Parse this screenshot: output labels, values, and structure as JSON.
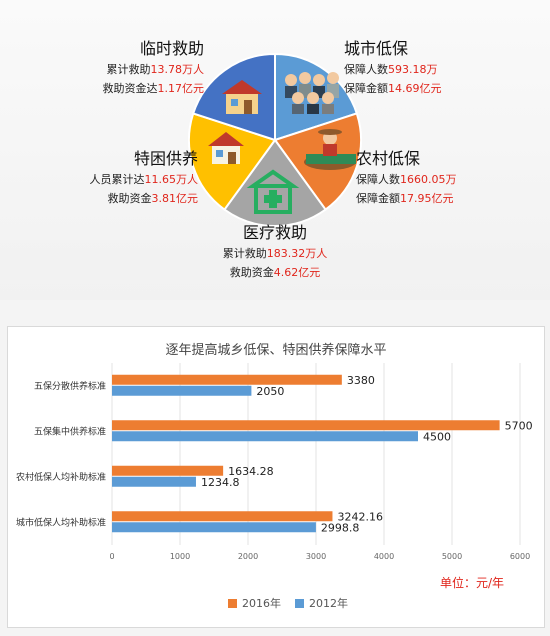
{
  "pie": {
    "slices": [
      {
        "key": "urban",
        "title": "城市低保",
        "color": "#5b9bd5",
        "lines": [
          {
            "prefix": "保障人数",
            "value": "593.18万"
          },
          {
            "prefix": "保障金额",
            "value": "14.69亿元"
          }
        ]
      },
      {
        "key": "rural",
        "title": "农村低保",
        "color": "#ed7d31",
        "lines": [
          {
            "prefix": "保障人数",
            "value": "1660.05万"
          },
          {
            "prefix": "保障金额",
            "value": "17.95亿元"
          }
        ]
      },
      {
        "key": "medical",
        "title": "医疗救助",
        "color": "#a5a5a5",
        "lines": [
          {
            "prefix": "累计救助",
            "value": "183.32万人"
          },
          {
            "prefix": "救助资金",
            "value": "4.62亿元"
          }
        ]
      },
      {
        "key": "special",
        "title": "特困供养",
        "color": "#ffc000",
        "lines": [
          {
            "prefix": "人员累计达",
            "value": "11.65万人"
          },
          {
            "prefix": "救助资金",
            "value": "3.81亿元"
          }
        ]
      },
      {
        "key": "temp",
        "title": "临时救助",
        "color": "#4472c4",
        "lines": [
          {
            "prefix": "累计救助",
            "value": "13.78万人"
          },
          {
            "prefix": "救助资金达",
            "value": "1.17亿元"
          }
        ]
      }
    ]
  },
  "chart_data": {
    "type": "bar",
    "orientation": "horizontal",
    "title": "逐年提高城乡低保、特困供养保障水平",
    "categories": [
      "五保分散供养标准",
      "五保集中供养标准",
      "农村低保人均补助标准",
      "城市低保人均补助标准"
    ],
    "series": [
      {
        "name": "2016年",
        "color": "#ed7d31",
        "values": [
          3380,
          5700,
          1634.28,
          3242.16
        ],
        "labels": [
          "3380",
          "5700",
          "1634.28",
          "3242.16"
        ]
      },
      {
        "name": "2012年",
        "color": "#5b9bd5",
        "values": [
          2050,
          4500,
          1234.8,
          2998.8
        ],
        "labels": [
          "2050",
          "4500",
          "1234.8",
          "2998.8"
        ]
      }
    ],
    "xlim": [
      0,
      6000
    ],
    "xticks": [
      "0",
      "1000",
      "2000",
      "3000",
      "4000",
      "5000",
      "6000"
    ],
    "grid": true,
    "legend_position": "bottom",
    "unit_label": "单位：元/年"
  }
}
